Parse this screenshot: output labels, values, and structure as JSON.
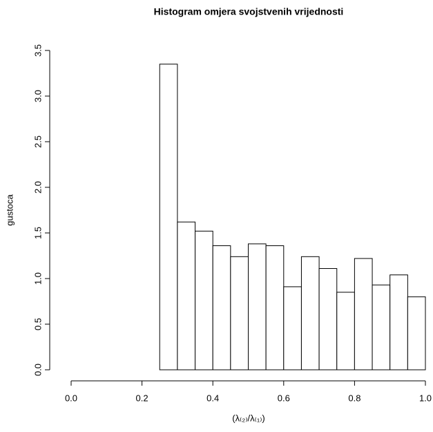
{
  "chart_data": {
    "type": "histogram",
    "title": "Histogram omjera svojstvenih vrijednosti",
    "xlabel": "(λ₍₂₎/λ₍₁₎)",
    "ylabel": "gustoca",
    "bins": [
      0.25,
      0.3,
      0.35,
      0.4,
      0.45,
      0.5,
      0.55,
      0.6,
      0.65,
      0.7,
      0.75,
      0.8,
      0.85,
      0.9,
      0.95,
      1.0
    ],
    "values": [
      3.35,
      1.62,
      1.52,
      1.36,
      1.24,
      1.38,
      1.36,
      0.91,
      1.24,
      1.11,
      0.85,
      1.22,
      0.93,
      1.04,
      0.8
    ],
    "color": "#ffffff",
    "xlim": [
      0,
      1
    ],
    "ylim": [
      0,
      3.5
    ],
    "xticks": [
      {
        "value": 0,
        "label": "0.0"
      },
      0.2,
      0.4,
      0.6,
      0.8,
      {
        "value": 1,
        "label": "1.0"
      }
    ],
    "yticks": [
      {
        "value": 0,
        "label": "0.0"
      },
      0.5,
      {
        "value": 1,
        "label": "1.0"
      },
      1.5,
      {
        "value": 2,
        "label": "2.0"
      },
      2.5,
      {
        "value": 3,
        "label": "3.0"
      },
      3.5
    ]
  }
}
